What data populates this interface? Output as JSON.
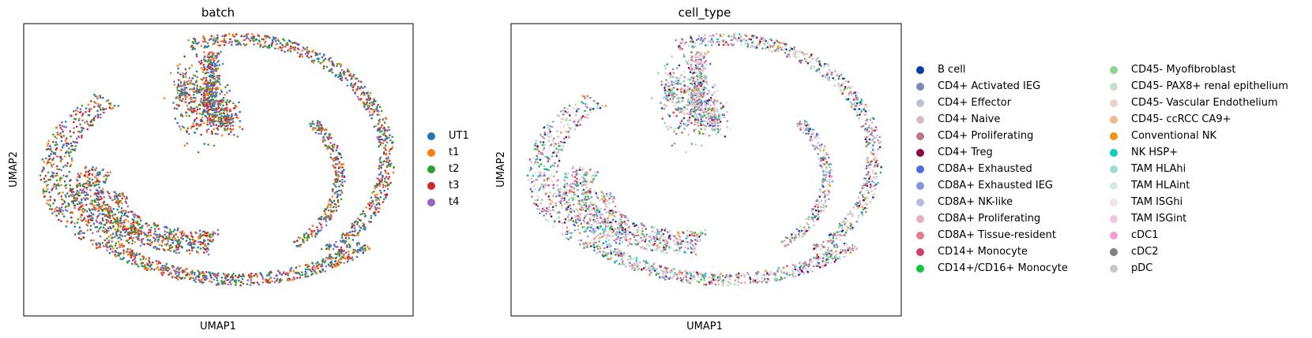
{
  "panels": [
    {
      "title": "batch",
      "xlabel": "UMAP1",
      "ylabel": "UMAP2",
      "legend": [
        {
          "label": "UT1",
          "color": "#1f77b4"
        },
        {
          "label": "t1",
          "color": "#ff7f0e"
        },
        {
          "label": "t2",
          "color": "#2ca02c"
        },
        {
          "label": "t3",
          "color": "#d62728"
        },
        {
          "label": "t4",
          "color": "#9467bd"
        }
      ]
    },
    {
      "title": "cell_type",
      "xlabel": "UMAP1",
      "ylabel": "UMAP2",
      "legend": [
        {
          "label": "B cell",
          "color": "#023fa5"
        },
        {
          "label": "CD4+ Activated IEG",
          "color": "#7d87b9"
        },
        {
          "label": "CD4+ Effector",
          "color": "#bec1d4"
        },
        {
          "label": "CD4+ Naive",
          "color": "#d6bcc0"
        },
        {
          "label": "CD4+ Proliferating",
          "color": "#bb7784"
        },
        {
          "label": "CD4+ Treg",
          "color": "#8e063b"
        },
        {
          "label": "CD8A+ Exhausted",
          "color": "#4a6fe3"
        },
        {
          "label": "CD8A+ Exhausted IEG",
          "color": "#8595e1"
        },
        {
          "label": "CD8A+ NK-like",
          "color": "#b5bbe3"
        },
        {
          "label": "CD8A+ Proliferating",
          "color": "#e6afb9"
        },
        {
          "label": "CD8A+ Tissue-resident",
          "color": "#e07b91"
        },
        {
          "label": "CD14+ Monocyte",
          "color": "#d33f6a"
        },
        {
          "label": "CD14+/CD16+ Monocyte",
          "color": "#11c638"
        },
        {
          "label": "CD45- Myofibroblast",
          "color": "#8dd593"
        },
        {
          "label": "CD45- PAX8+ renal epithelium",
          "color": "#c6dec7"
        },
        {
          "label": "CD45- Vascular Endothelium",
          "color": "#ead3c6"
        },
        {
          "label": "CD45- ccRCC CA9+",
          "color": "#f0b98d"
        },
        {
          "label": "Conventional NK",
          "color": "#ef9708"
        },
        {
          "label": "NK HSP+",
          "color": "#0fcfc0"
        },
        {
          "label": "TAM HLAhi",
          "color": "#9cded6"
        },
        {
          "label": "TAM HLAint",
          "color": "#d5eae7"
        },
        {
          "label": "TAM ISGhi",
          "color": "#f3e1eb"
        },
        {
          "label": "TAM ISGint",
          "color": "#f6c4e1"
        },
        {
          "label": "cDC1",
          "color": "#f79cd4"
        },
        {
          "label": "cDC2",
          "color": "#7f7f7f"
        },
        {
          "label": "pDC",
          "color": "#c7c7c7"
        }
      ]
    }
  ],
  "chart_data": [
    {
      "type": "scatter",
      "title": "batch",
      "xlabel": "UMAP1",
      "ylabel": "UMAP2",
      "grid": false,
      "ticks": false,
      "legend_position": "right",
      "color_by": "batch",
      "series": [
        {
          "name": "UT1",
          "color": "#1f77b4"
        },
        {
          "name": "t1",
          "color": "#ff7f0e"
        },
        {
          "name": "t2",
          "color": "#2ca02c"
        },
        {
          "name": "t3",
          "color": "#d62728"
        },
        {
          "name": "t4",
          "color": "#9467bd"
        }
      ]
    },
    {
      "type": "scatter",
      "title": "cell_type",
      "xlabel": "UMAP1",
      "ylabel": "UMAP2",
      "grid": false,
      "ticks": false,
      "legend_position": "right",
      "legend_columns": 2,
      "color_by": "cell_type",
      "series": [
        {
          "name": "B cell",
          "color": "#023fa5"
        },
        {
          "name": "CD4+ Activated IEG",
          "color": "#7d87b9"
        },
        {
          "name": "CD4+ Effector",
          "color": "#bec1d4"
        },
        {
          "name": "CD4+ Naive",
          "color": "#d6bcc0"
        },
        {
          "name": "CD4+ Proliferating",
          "color": "#bb7784"
        },
        {
          "name": "CD4+ Treg",
          "color": "#8e063b"
        },
        {
          "name": "CD8A+ Exhausted",
          "color": "#4a6fe3"
        },
        {
          "name": "CD8A+ Exhausted IEG",
          "color": "#8595e1"
        },
        {
          "name": "CD8A+ NK-like",
          "color": "#b5bbe3"
        },
        {
          "name": "CD8A+ Proliferating",
          "color": "#e6afb9"
        },
        {
          "name": "CD8A+ Tissue-resident",
          "color": "#e07b91"
        },
        {
          "name": "CD14+ Monocyte",
          "color": "#d33f6a"
        },
        {
          "name": "CD14+/CD16+ Monocyte",
          "color": "#11c638"
        },
        {
          "name": "CD45- Myofibroblast",
          "color": "#8dd593"
        },
        {
          "name": "CD45- PAX8+ renal epithelium",
          "color": "#c6dec7"
        },
        {
          "name": "CD45- Vascular Endothelium",
          "color": "#ead3c6"
        },
        {
          "name": "CD45- ccRCC CA9+",
          "color": "#f0b98d"
        },
        {
          "name": "Conventional NK",
          "color": "#ef9708"
        },
        {
          "name": "NK HSP+",
          "color": "#0fcfc0"
        },
        {
          "name": "TAM HLAhi",
          "color": "#9cded6"
        },
        {
          "name": "TAM HLAint",
          "color": "#d5eae7"
        },
        {
          "name": "TAM ISGhi",
          "color": "#f3e1eb"
        },
        {
          "name": "TAM ISGint",
          "color": "#f6c4e1"
        },
        {
          "name": "cDC1",
          "color": "#f79cd4"
        },
        {
          "name": "cDC2",
          "color": "#7f7f7f"
        },
        {
          "name": "pDC",
          "color": "#c7c7c7"
        }
      ]
    }
  ]
}
